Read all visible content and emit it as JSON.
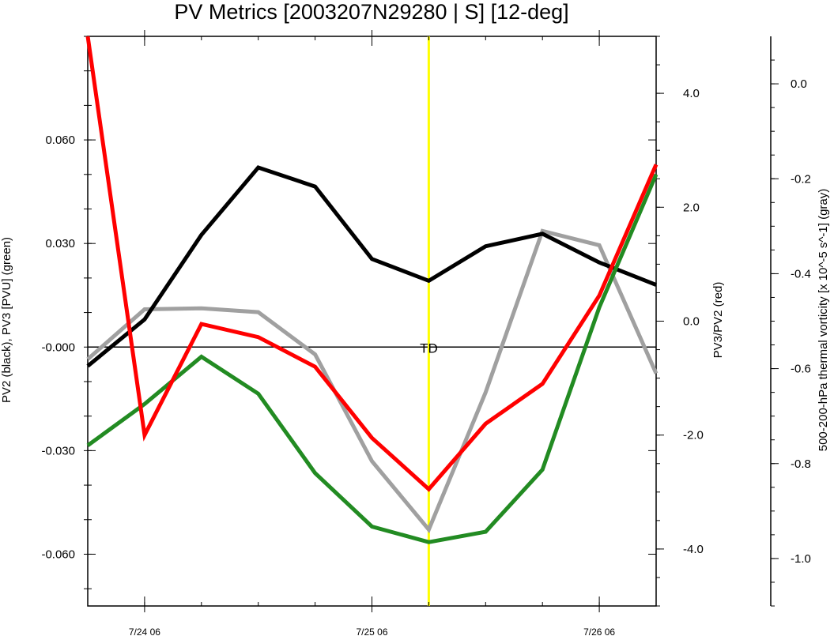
{
  "chart_data": {
    "type": "line",
    "title": "PV Metrics [2003207N29280 | S] [12-deg]",
    "x": [
      "7/24 00",
      "7/24 06",
      "7/24 12",
      "7/24 18",
      "7/25 00",
      "7/25 06",
      "7/25 12",
      "7/25 18",
      "7/26 00",
      "7/26 06",
      "7/26 12"
    ],
    "x_ticks": [
      {
        "x": "7/24 06",
        "label": "7/24 06"
      },
      {
        "x": "7/25 06",
        "label": "7/25 06"
      },
      {
        "x": "7/26 06",
        "label": "7/26 06"
      }
    ],
    "left_axis": {
      "label": "PV2 (black), PV3 [PVU] (green)",
      "ylim": [
        -0.075,
        0.09
      ],
      "ticks": [
        0.06,
        0.03,
        0.0,
        -0.03,
        -0.06
      ],
      "tick_labels": [
        "0.060",
        "0.030",
        "-0.000",
        "-0.030",
        "-0.060"
      ]
    },
    "right_axis": {
      "label": "PV3/PV2 (red)",
      "ylim": [
        -5.0,
        5.0
      ],
      "ticks": [
        4.0,
        2.0,
        0.0,
        -2.0,
        -4.0
      ],
      "tick_labels": [
        "4.0",
        "2.0",
        "0.0",
        "-2.0",
        "-4.0"
      ]
    },
    "far_right_axis": {
      "label": "500-200-hPa thermal vorticity [x 10^-5 s^-1] (gray)",
      "ylim": [
        -1.1,
        0.1
      ],
      "ticks": [
        0.0,
        -0.2,
        -0.4,
        -0.6,
        -0.8,
        -1.0
      ],
      "tick_labels": [
        "0.0",
        "-0.2",
        "-0.4",
        "-0.6",
        "-0.8",
        "-1.0"
      ]
    },
    "series": [
      {
        "name": "PV2",
        "axis": "left",
        "color": "#000000",
        "values": [
          -0.0055,
          0.008,
          0.0325,
          0.052,
          0.0465,
          0.0255,
          0.0192,
          0.0292,
          0.0328,
          0.0245,
          0.018
        ]
      },
      {
        "name": "PV3",
        "axis": "left",
        "color": "#228b22",
        "values": [
          -0.0285,
          -0.0165,
          -0.0028,
          -0.0135,
          -0.0365,
          -0.052,
          -0.0565,
          -0.0535,
          -0.0355,
          0.0115,
          0.05
        ]
      },
      {
        "name": "PV3/PV2",
        "axis": "right",
        "color": "#ff0000",
        "values": [
          5.0,
          -2.0,
          -0.05,
          -0.28,
          -0.8,
          -2.05,
          -2.95,
          -1.8,
          -1.1,
          0.45,
          2.75
        ]
      },
      {
        "name": "thermal vorticity",
        "axis": "far_right",
        "color": "#a0a0a0",
        "values": [
          -0.58,
          -0.475,
          -0.473,
          -0.481,
          -0.57,
          -0.795,
          -0.939,
          -0.65,
          -0.31,
          -0.34,
          -0.61
        ]
      }
    ],
    "reference_line": {
      "axis": "left",
      "value": 0.0
    },
    "marker_line": {
      "x": "7/25 12",
      "color": "#ffff00",
      "label": "TD"
    },
    "grid": false,
    "legend": "none"
  }
}
